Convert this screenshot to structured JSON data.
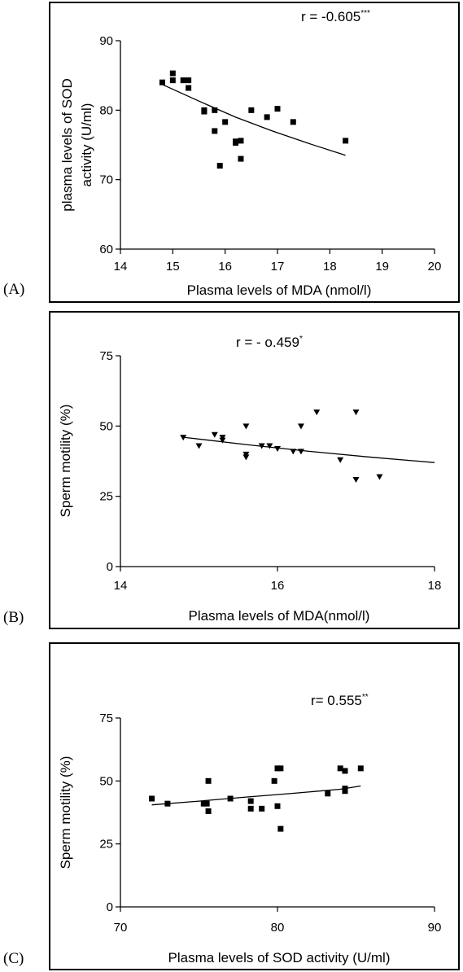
{
  "chart_data": [
    {
      "type": "scatter",
      "panel_label": "(A)",
      "annotation": "r = -0.605",
      "annotation_sup": "***",
      "xlabel": "Plasma levels of MDA (nmol/l)",
      "ylabel_lines": [
        "plasma levels of SOD",
        "activity (U/ml)"
      ],
      "xlim": [
        14,
        20
      ],
      "ylim": [
        60,
        90
      ],
      "xticks": [
        14,
        15,
        16,
        17,
        18,
        19,
        20
      ],
      "yticks": [
        60,
        70,
        80,
        90
      ],
      "marker": "square",
      "points": [
        [
          14.8,
          84.0
        ],
        [
          15.0,
          85.3
        ],
        [
          15.0,
          84.3
        ],
        [
          15.2,
          84.3
        ],
        [
          15.3,
          84.3
        ],
        [
          15.3,
          83.2
        ],
        [
          15.6,
          80.0
        ],
        [
          15.6,
          79.8
        ],
        [
          15.8,
          80.0
        ],
        [
          15.8,
          77.0
        ],
        [
          15.9,
          72.0
        ],
        [
          16.0,
          78.3
        ],
        [
          16.2,
          75.5
        ],
        [
          16.2,
          75.3
        ],
        [
          16.3,
          75.6
        ],
        [
          16.3,
          73.0
        ],
        [
          16.5,
          80.0
        ],
        [
          16.8,
          79.0
        ],
        [
          17.0,
          80.2
        ],
        [
          17.3,
          78.3
        ],
        [
          18.3,
          75.6
        ]
      ],
      "fit_line": [
        [
          14.8,
          83.7
        ],
        [
          15.5,
          81.3
        ],
        [
          16.2,
          79.0
        ],
        [
          16.9,
          77.0
        ],
        [
          17.6,
          75.2
        ],
        [
          18.3,
          73.5
        ]
      ]
    },
    {
      "type": "scatter",
      "panel_label": "(B)",
      "annotation": "r = - o.459",
      "annotation_sup": "*",
      "xlabel": "Plasma levels of MDA(nmol/l)",
      "ylabel_lines": [
        "Sperm motility (%)"
      ],
      "xlim": [
        14,
        18
      ],
      "ylim": [
        0,
        75
      ],
      "xticks": [
        14,
        16,
        18
      ],
      "yticks": [
        0,
        25,
        50,
        75
      ],
      "marker": "triangle-down",
      "points": [
        [
          14.8,
          46
        ],
        [
          15.0,
          43
        ],
        [
          15.2,
          47
        ],
        [
          15.3,
          46
        ],
        [
          15.3,
          45
        ],
        [
          15.6,
          50
        ],
        [
          15.6,
          40
        ],
        [
          15.6,
          39
        ],
        [
          15.8,
          43
        ],
        [
          15.9,
          43
        ],
        [
          16.0,
          42
        ],
        [
          16.2,
          41
        ],
        [
          16.3,
          41
        ],
        [
          16.3,
          50
        ],
        [
          16.5,
          55
        ],
        [
          16.8,
          38
        ],
        [
          17.0,
          55
        ],
        [
          17.0,
          31
        ],
        [
          17.3,
          32
        ]
      ],
      "fit_line": [
        [
          14.8,
          46.0
        ],
        [
          15.6,
          43.4
        ],
        [
          16.4,
          41.0
        ],
        [
          17.2,
          38.9
        ],
        [
          18.0,
          37.0
        ]
      ]
    },
    {
      "type": "scatter",
      "panel_label": "(C)",
      "annotation": "r= 0.555",
      "annotation_sup": "**",
      "xlabel": "Plasma levels of SOD activity (U/ml)",
      "ylabel_lines": [
        "Sperm motility (%)"
      ],
      "xlim": [
        70,
        90
      ],
      "ylim": [
        0,
        75
      ],
      "xticks": [
        70,
        80,
        90
      ],
      "yticks": [
        0,
        25,
        50,
        75
      ],
      "marker": "square",
      "points": [
        [
          72.0,
          43
        ],
        [
          73.0,
          41
        ],
        [
          75.3,
          41
        ],
        [
          75.5,
          41
        ],
        [
          75.6,
          50
        ],
        [
          75.6,
          38
        ],
        [
          77.0,
          43
        ],
        [
          78.3,
          42
        ],
        [
          78.3,
          39
        ],
        [
          79.0,
          39
        ],
        [
          79.8,
          50
        ],
        [
          80.0,
          55
        ],
        [
          80.2,
          55
        ],
        [
          80.0,
          40
        ],
        [
          80.2,
          31
        ],
        [
          83.2,
          45
        ],
        [
          84.0,
          55
        ],
        [
          84.3,
          54
        ],
        [
          84.3,
          47
        ],
        [
          84.3,
          46
        ],
        [
          85.3,
          55
        ]
      ],
      "fit_line": [
        [
          72.0,
          40.5
        ],
        [
          75.0,
          42.0
        ],
        [
          78.0,
          43.6
        ],
        [
          81.0,
          45.1
        ],
        [
          84.0,
          46.7
        ],
        [
          85.3,
          48.0
        ]
      ]
    }
  ]
}
